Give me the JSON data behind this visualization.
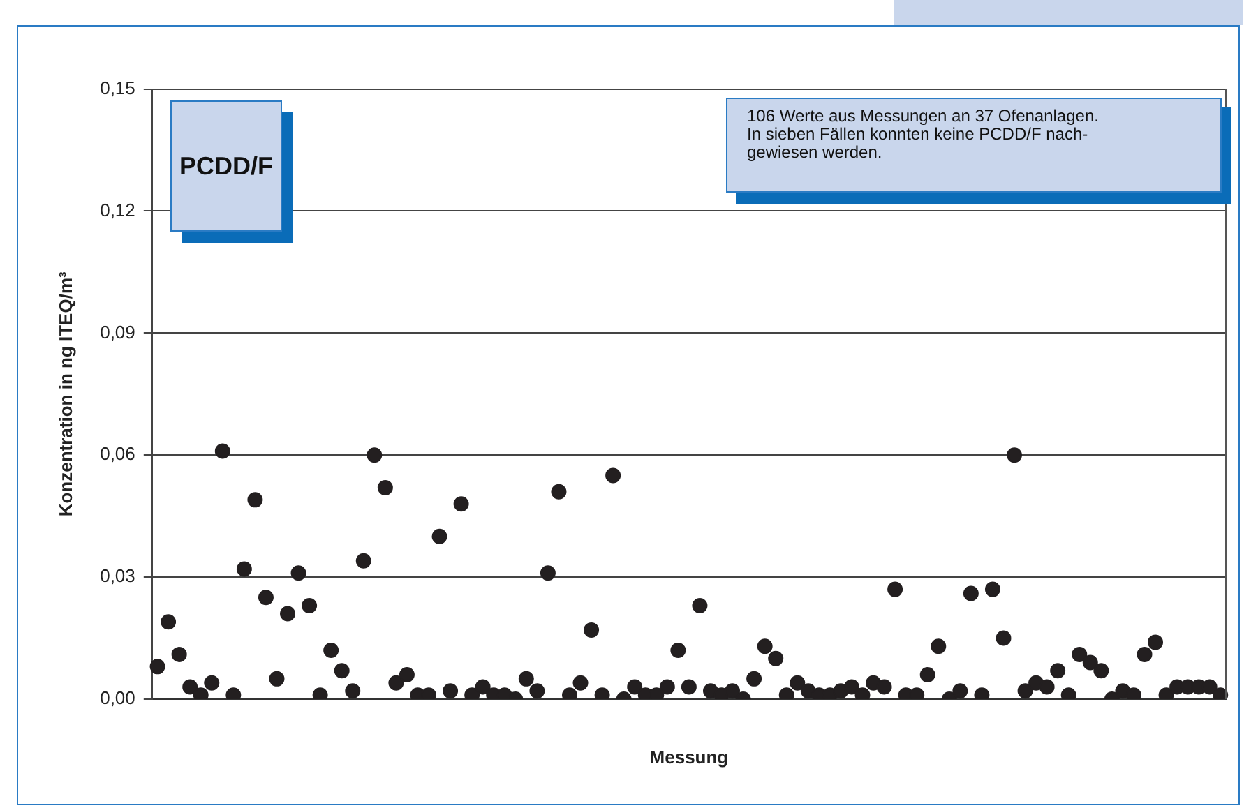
{
  "chart_data": {
    "type": "scatter",
    "title": "PCDD/F",
    "xlabel": "Messung",
    "ylabel": "Konzentration in ng ITEQ/m³",
    "annotations": [
      "106 Werte aus Messungen an 37 Ofenanlagen. In sieben Fällen konnten keine PCDD/F nach- gewiesen werden."
    ],
    "categories": [
      null,
      null,
      null,
      null,
      null,
      null,
      null,
      null,
      null,
      null,
      null,
      null,
      null,
      null,
      null,
      null,
      null,
      null,
      null,
      null,
      null,
      null,
      null,
      null,
      null,
      null,
      null,
      null,
      null,
      null,
      null,
      null,
      null,
      null,
      null,
      null,
      null,
      null,
      null,
      null,
      null,
      null,
      null,
      null,
      null,
      null,
      null,
      null,
      null,
      null,
      null,
      null,
      null,
      null,
      null,
      null,
      null,
      null,
      null,
      null,
      null,
      null,
      null,
      null,
      null,
      null,
      null,
      null,
      null,
      null,
      null,
      null,
      null,
      null,
      null,
      null,
      null,
      null,
      null,
      null,
      null,
      null,
      null,
      null,
      null,
      null,
      null,
      null,
      null,
      null,
      null,
      null,
      null,
      null,
      null,
      null,
      null,
      null,
      null
    ],
    "series": [
      {
        "color": "#231f20",
        "values": [
          0.008,
          0.019,
          0.011,
          0.003,
          0.001,
          0.004,
          0.061,
          0.001,
          0.032,
          0.049,
          0.025,
          0.005,
          0.021,
          0.031,
          0.023,
          0.001,
          0.012,
          0.007,
          0.002,
          0.034,
          0.06,
          0.052,
          0.004,
          0.006,
          0.001,
          0.001,
          0.04,
          0.002,
          0.048,
          0.001,
          0.003,
          0.001,
          0.001,
          0.0,
          0.005,
          0.002,
          0.031,
          0.051,
          0.001,
          0.004,
          0.017,
          0.001,
          0.055,
          0.0,
          0.003,
          0.001,
          0.001,
          0.003,
          0.012,
          0.003,
          0.023,
          0.002,
          0.001,
          0.002,
          0.0,
          0.005,
          0.013,
          0.01,
          0.001,
          0.004,
          0.002,
          0.001,
          0.001,
          0.002,
          0.003,
          0.001,
          0.004,
          0.003,
          0.027,
          0.001,
          0.001,
          0.006,
          0.013,
          0.0,
          0.002,
          0.026,
          0.001,
          0.027,
          0.015,
          0.06,
          0.002,
          0.004,
          0.003,
          0.007,
          0.001,
          0.011,
          0.009,
          0.007,
          0.0,
          0.002,
          0.001,
          0.011,
          0.014,
          0.001,
          0.003,
          0.003,
          0.003,
          0.003,
          0.001
        ]
      }
    ],
    "ylim": [
      0,
      0.15
    ],
    "yticks": [
      {
        "value": 0,
        "label": "0,00"
      },
      {
        "value": 0.03,
        "label": "0,03"
      },
      {
        "value": 0.06,
        "label": "0,06"
      },
      {
        "value": 0.09,
        "label": "0,09"
      },
      {
        "value": 0.12,
        "label": "0,12"
      },
      {
        "value": 0.15,
        "label": "0,15"
      }
    ],
    "grid": "y",
    "legend": false,
    "marker": "circle"
  }
}
